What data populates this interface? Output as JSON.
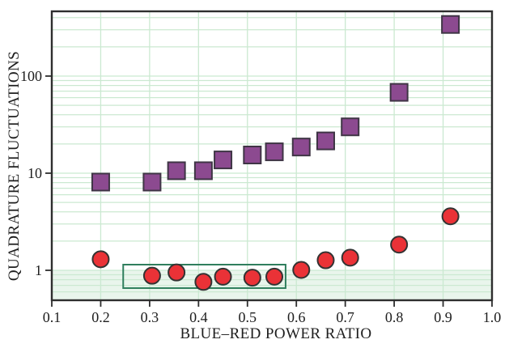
{
  "figure": {
    "background": "#ffffff"
  },
  "chart_data": {
    "type": "scatter",
    "title": "",
    "xlabel": "BLUE–RED POWER RATIO",
    "ylabel": "QUADRATURE FLUCTUATIONS",
    "x_scale": "linear",
    "y_scale": "log",
    "xlim": [
      0.1,
      1.0
    ],
    "ylim": [
      0.5,
      465
    ],
    "grid": true,
    "x_ticks": [
      0.1,
      0.2,
      0.3,
      0.4,
      0.5,
      0.6,
      0.7,
      0.8,
      0.9,
      1.0
    ],
    "x_tick_labels": [
      "0.1",
      "0.2",
      "0.3",
      "0.4",
      "0.5",
      "0.6",
      "0.7",
      "0.8",
      "0.9",
      "1.0"
    ],
    "y_ticks": [
      1,
      10,
      100
    ],
    "y_tick_labels": [
      "1",
      "10",
      "100"
    ],
    "x": [
      0.2,
      0.305,
      0.355,
      0.41,
      0.45,
      0.51,
      0.555,
      0.61,
      0.66,
      0.71,
      0.81,
      0.915
    ],
    "series": [
      {
        "name": "squares",
        "marker": "square",
        "color": "#8c4a90",
        "edge_color": "#3f3545",
        "y": [
          8.1,
          8.1,
          10.6,
          10.6,
          13.7,
          15.4,
          16.6,
          18.6,
          21.5,
          30,
          68,
          340
        ]
      },
      {
        "name": "circles",
        "marker": "circle",
        "color": "#ea3237",
        "edge_color": "#333333",
        "y": [
          1.3,
          0.88,
          0.95,
          0.76,
          0.86,
          0.84,
          0.86,
          1.01,
          1.27,
          1.35,
          1.84,
          3.6
        ]
      }
    ],
    "highlight_box": {
      "x0": 0.246,
      "x1": 0.578,
      "y0": 0.656,
      "y1": 1.144,
      "color": "#2f7e5d"
    },
    "shaded_region": {
      "y0": 0.5,
      "y1": 1.0,
      "color": "#e9f5ec"
    },
    "grid_color": "#cbe9d1",
    "axis_color": "#2e2e2e",
    "legend": "none"
  }
}
